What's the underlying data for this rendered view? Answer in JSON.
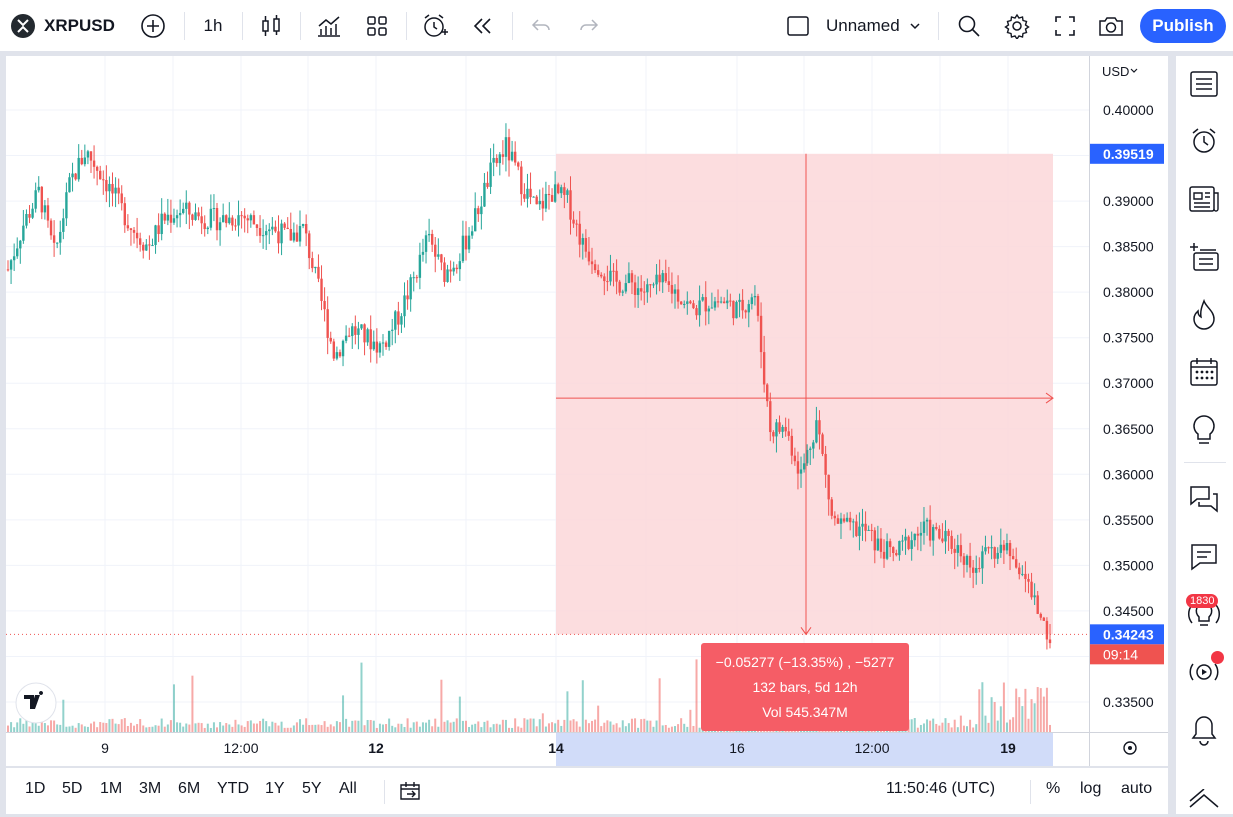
{
  "header": {
    "symbol": "XRPUSD",
    "interval": "1h",
    "layout_name": "Unnamed",
    "publish_label": "Publish"
  },
  "price_axis": {
    "currency": "USD",
    "ticks": [
      "0.40000",
      "0.39000",
      "0.38500",
      "0.38000",
      "0.37500",
      "0.37000",
      "0.36500",
      "0.36000",
      "0.35500",
      "0.35000",
      "0.34500",
      "0.33500"
    ],
    "high_label": "0.39519",
    "last_price_label": "0.34243",
    "countdown_label": "09:14"
  },
  "time_axis": {
    "ticks": [
      "9",
      "12:00",
      "12",
      "14",
      "16",
      "12:00",
      "19"
    ]
  },
  "measure": {
    "line1": "−0.05277 (−13.35%) , −5277",
    "line2": "132 bars, 5d 12h",
    "line3": "Vol 545.347M"
  },
  "bottom": {
    "ranges": [
      "1D",
      "5D",
      "1M",
      "3M",
      "6M",
      "YTD",
      "1Y",
      "5Y",
      "All"
    ],
    "clock": "11:50:46 (UTC)",
    "percent_label": "%",
    "log_label": "log",
    "auto_label": "auto"
  },
  "sidebar": {
    "badge": "1830"
  },
  "colors": {
    "up": "#26a69a",
    "down": "#ef5350",
    "accent": "#2962ff",
    "measure_fill": "#fbd7d9",
    "axis_highlight": "#d1dcf9"
  },
  "chart_data": {
    "type": "candlestick",
    "symbol": "XRPUSD",
    "ylim": [
      0.332,
      0.403
    ],
    "highlighted_range": {
      "start_price": 0.39519,
      "end_price": 0.34243,
      "change": -0.05277,
      "change_pct": -13.35,
      "bars": 132,
      "duration": "5d 12h",
      "volume": "545.347M"
    },
    "approx_path": [
      0.3825,
      0.3875,
      0.391,
      0.384,
      0.392,
      0.3955,
      0.393,
      0.39,
      0.387,
      0.385,
      0.388,
      0.389,
      0.3885,
      0.388,
      0.388,
      0.3885,
      0.3875,
      0.387,
      0.386,
      0.387,
      0.38,
      0.373,
      0.376,
      0.375,
      0.374,
      0.377,
      0.381,
      0.386,
      0.382,
      0.384,
      0.388,
      0.393,
      0.396,
      0.392,
      0.389,
      0.391,
      0.39,
      0.385,
      0.383,
      0.381,
      0.381,
      0.38,
      0.381,
      0.38,
      0.378,
      0.379,
      0.379,
      0.378,
      0.38,
      0.365,
      0.365,
      0.36,
      0.366,
      0.355,
      0.354,
      0.354,
      0.352,
      0.351,
      0.353,
      0.354,
      0.353,
      0.352,
      0.35,
      0.351,
      0.352,
      0.35,
      0.346,
      0.342
    ]
  }
}
